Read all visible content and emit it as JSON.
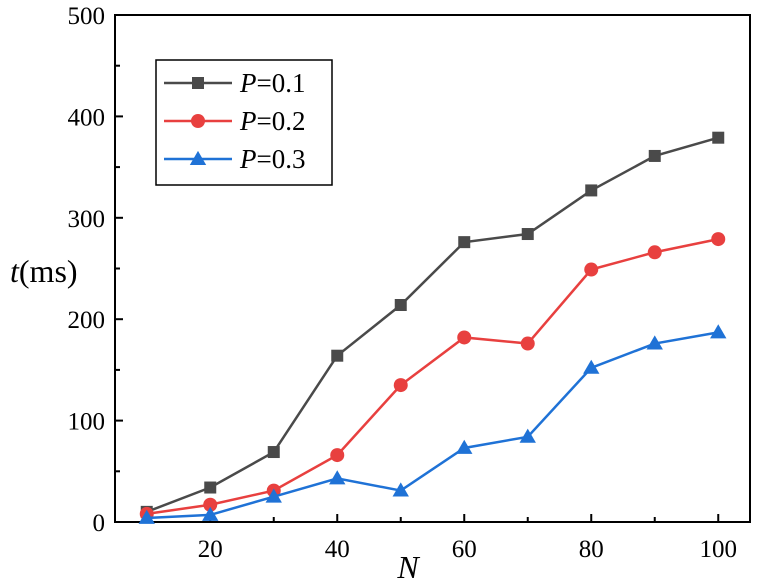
{
  "chart_data": {
    "type": "line",
    "title": "",
    "xlabel": "N",
    "ylabel": {
      "italic": "t",
      "unit": "(ms)"
    },
    "x": [
      10,
      20,
      30,
      40,
      50,
      60,
      70,
      80,
      90,
      100
    ],
    "xlim": [
      5,
      105
    ],
    "ylim": [
      0,
      500
    ],
    "xticks": [
      20,
      40,
      60,
      80,
      100
    ],
    "yticks": [
      0,
      100,
      200,
      300,
      400,
      500
    ],
    "grid": false,
    "legend_position": "top-left",
    "series": [
      {
        "name": "P=0.1",
        "label_italic": "P",
        "label_rest": "=0.1",
        "color": "#4a4a4a",
        "marker": "square",
        "values": [
          10,
          34,
          69,
          164,
          214,
          276,
          284,
          327,
          361,
          379
        ]
      },
      {
        "name": "P=0.2",
        "label_italic": "P",
        "label_rest": "=0.2",
        "color": "#e8403f",
        "marker": "circle",
        "values": [
          8,
          17,
          31,
          66,
          135,
          182,
          176,
          249,
          266,
          279
        ]
      },
      {
        "name": "P=0.3",
        "label_italic": "P",
        "label_rest": "=0.3",
        "color": "#1f72d6",
        "marker": "triangle",
        "values": [
          4,
          7,
          25,
          43,
          31,
          73,
          84,
          152,
          176,
          187
        ]
      }
    ]
  }
}
